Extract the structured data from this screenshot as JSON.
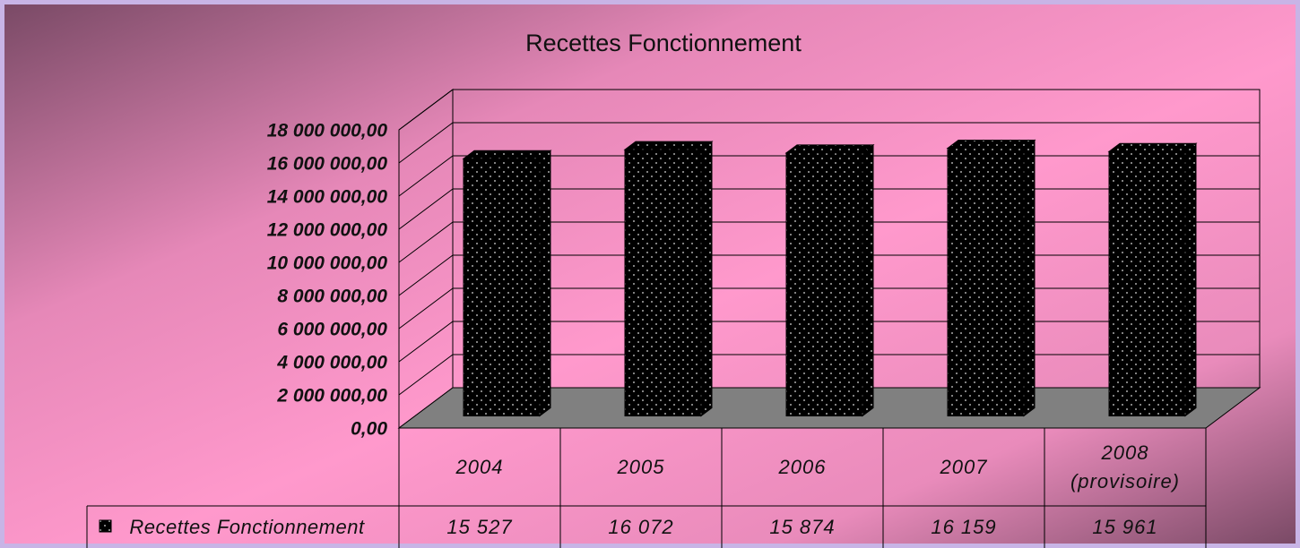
{
  "chart_data": {
    "type": "bar3d",
    "title": "Recettes Fonctionnement",
    "categories": [
      "2004",
      "2005",
      "2006",
      "2007",
      "2008 (provisoire)"
    ],
    "series": [
      {
        "name": "Recettes Fonctionnement",
        "color": "#000000",
        "values": [
          15527000,
          16072000,
          15874000,
          16159000,
          15961000
        ],
        "value_labels": [
          "15 527",
          "16 072",
          "15 874",
          "16 159",
          "15 961"
        ]
      }
    ],
    "ylim": [
      0,
      18000000
    ],
    "yticks": [
      {
        "value": 0,
        "label": "0,00"
      },
      {
        "value": 2000000,
        "label": "2 000 000,00"
      },
      {
        "value": 4000000,
        "label": "4 000 000,00"
      },
      {
        "value": 6000000,
        "label": "6 000 000,00"
      },
      {
        "value": 8000000,
        "label": "8 000 000,00"
      },
      {
        "value": 10000000,
        "label": "10 000 000,00"
      },
      {
        "value": 12000000,
        "label": "12 000 000,00"
      },
      {
        "value": 14000000,
        "label": "14 000 000,00"
      },
      {
        "value": 16000000,
        "label": "16 000 000,00"
      },
      {
        "value": 18000000,
        "label": "18 000 000,00"
      }
    ],
    "grid": true
  }
}
